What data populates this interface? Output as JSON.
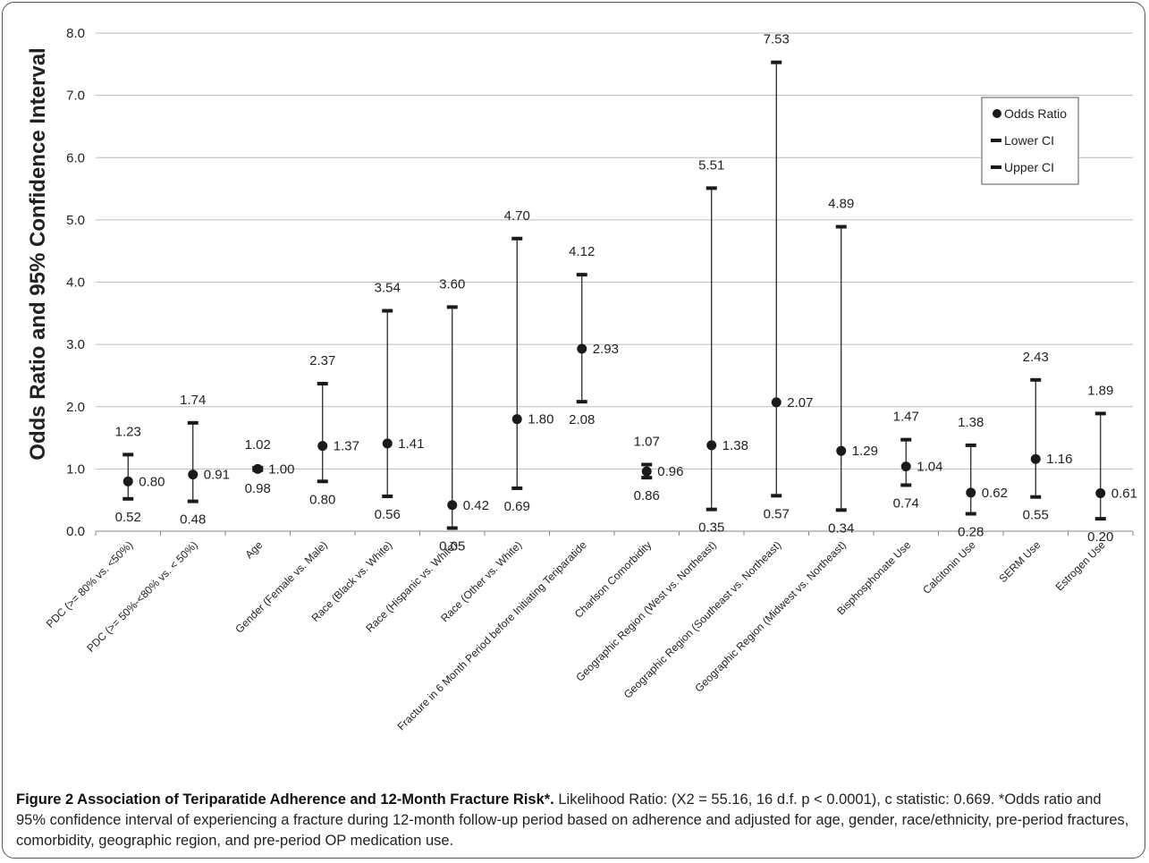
{
  "chart_data": {
    "type": "scatter",
    "ylabel": "Odds Ratio and 95% Confidence Interval",
    "ylim": [
      0,
      8
    ],
    "yticks": [
      "0.0",
      "1.0",
      "2.0",
      "3.0",
      "4.0",
      "5.0",
      "6.0",
      "7.0",
      "8.0"
    ],
    "grid": "horizontal",
    "legend_position": "top-right",
    "legend": [
      {
        "marker": "dot",
        "label": "Odds Ratio"
      },
      {
        "marker": "dash",
        "label": "Lower CI"
      },
      {
        "marker": "dash",
        "label": "Upper CI"
      }
    ],
    "categories": [
      "PDC (>= 80% vs. <50%)",
      "PDC (>= 50%-<80% vs. < 50%)",
      "Age",
      "Gender (Female vs. Male)",
      "Race (Black vs. White)",
      "Race (Hispanic vs. White)",
      "Race (Other vs. White)",
      "Fracture in 6 Month Period before Initiating Teriparatide",
      "Charlson Comorbidity",
      "Geographic Region (West vs. Northeast)",
      "Geographic Region (Southeast vs. Northeast)",
      "Geographic Region (Midwest vs. Northeast)",
      "Bisphosphonate Use",
      "Calcitonin Use",
      "SERM Use",
      "Estrogen Use"
    ],
    "odds_ratio": [
      0.8,
      0.91,
      1.0,
      1.37,
      1.41,
      0.42,
      1.8,
      2.93,
      0.96,
      1.38,
      2.07,
      1.29,
      1.04,
      0.62,
      1.16,
      0.61
    ],
    "lower_ci": [
      0.52,
      0.48,
      0.98,
      0.8,
      0.56,
      0.05,
      0.69,
      2.08,
      0.86,
      0.35,
      0.57,
      0.34,
      0.74,
      0.28,
      0.55,
      0.2
    ],
    "upper_ci": [
      1.23,
      1.74,
      1.02,
      2.37,
      3.54,
      3.6,
      4.7,
      4.12,
      1.07,
      5.51,
      7.53,
      4.89,
      1.47,
      1.38,
      2.43,
      1.89
    ],
    "odds_ratio_labels": [
      "0.80",
      "0.91",
      "1.00",
      "1.37",
      "1.41",
      "0.42",
      "1.80",
      "2.93",
      "0.96",
      "1.38",
      "2.07",
      "1.29",
      "1.04",
      "0.62",
      "1.16",
      "0.61"
    ],
    "lower_ci_labels": [
      "0.52",
      "0.48",
      "0.98",
      "0.80",
      "0.56",
      "0.05",
      "0.69",
      "2.08",
      "0.86",
      "0.35",
      "0.57",
      "0.34",
      "0.74",
      "0.28",
      "0.55",
      "0.20"
    ],
    "upper_ci_labels": [
      "1.23",
      "1.74",
      "1.02",
      "2.37",
      "3.54",
      "3.60",
      "4.70",
      "4.12",
      "1.07",
      "5.51",
      "7.53",
      "4.89",
      "1.47",
      "1.38",
      "2.43",
      "1.89"
    ],
    "colors": {
      "marker": "#1a1a1a",
      "grid": "#bbbbbb",
      "text": "#222222"
    }
  },
  "caption": {
    "title": "Figure 2 Association of Teriparatide Adherence and 12-Month Fracture Risk*.",
    "body": " Likelihood Ratio: (X2 = 55.16, 16 d.f. p < 0.0001), c statistic: 0.669. *Odds ratio and 95% confidence interval of experiencing a fracture during 12-month follow-up period based on adherence and adjusted for age, gender, race/ethnicity, pre-period fractures, comorbidity, geographic region, and pre-period OP medication use."
  }
}
